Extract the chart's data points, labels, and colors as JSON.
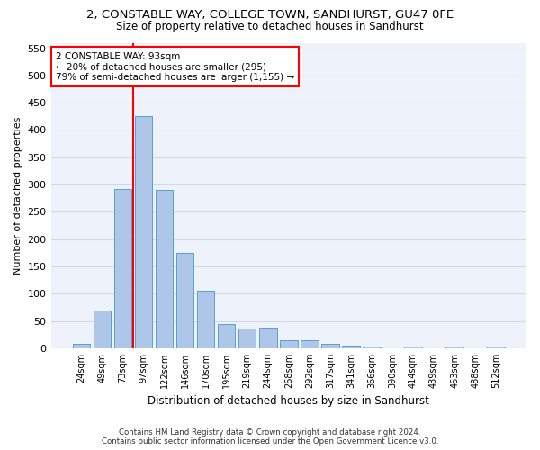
{
  "title": "2, CONSTABLE WAY, COLLEGE TOWN, SANDHURST, GU47 0FE",
  "subtitle": "Size of property relative to detached houses in Sandhurst",
  "xlabel": "Distribution of detached houses by size in Sandhurst",
  "ylabel": "Number of detached properties",
  "bar_values": [
    8,
    70,
    292,
    425,
    290,
    175,
    105,
    44,
    37,
    38,
    15,
    15,
    8,
    5,
    3,
    0,
    4,
    0,
    4,
    0,
    3
  ],
  "bar_labels": [
    "24sqm",
    "49sqm",
    "73sqm",
    "97sqm",
    "122sqm",
    "146sqm",
    "170sqm",
    "195sqm",
    "219sqm",
    "244sqm",
    "268sqm",
    "292sqm",
    "317sqm",
    "341sqm",
    "366sqm",
    "390sqm",
    "414sqm",
    "439sqm",
    "463sqm",
    "488sqm",
    "512sqm"
  ],
  "bar_color": "#aec6e8",
  "bar_edge_color": "#5a9fd4",
  "grid_color": "#d0d8e8",
  "bg_color": "#eef2fb",
  "red_line_x": 2.5,
  "annotation_line1": "2 CONSTABLE WAY: 93sqm",
  "annotation_line2": "← 20% of detached houses are smaller (295)",
  "annotation_line3": "79% of semi-detached houses are larger (1,155) →",
  "annotation_box_color": "white",
  "annotation_border_color": "red",
  "ylim": [
    0,
    560
  ],
  "yticks": [
    0,
    50,
    100,
    150,
    200,
    250,
    300,
    350,
    400,
    450,
    500,
    550
  ],
  "footer_line1": "Contains HM Land Registry data © Crown copyright and database right 2024.",
  "footer_line2": "Contains public sector information licensed under the Open Government Licence v3.0.",
  "title_fontsize": 9.5,
  "subtitle_fontsize": 8.5
}
